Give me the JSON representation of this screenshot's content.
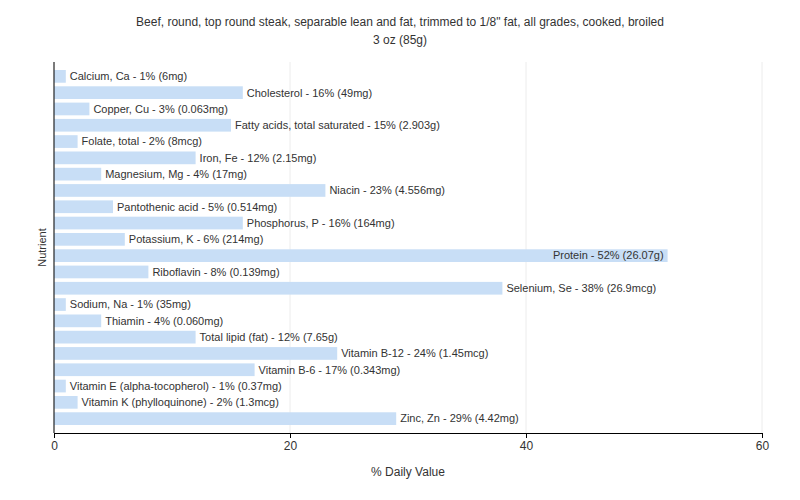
{
  "chart_data": {
    "type": "bar",
    "orientation": "horizontal",
    "title": "Beef, round, top round steak, separable lean and fat, trimmed to 1/8\" fat, all grades, cooked, broiled",
    "subtitle": "3 oz (85g)",
    "x_label": "% Daily Value",
    "y_label": "Nutrient",
    "categories": [
      "Calcium, Ca - 1% (6mg)",
      "Cholesterol - 16% (49mg)",
      "Copper, Cu - 3% (0.063mg)",
      "Fatty acids, total saturated - 15% (2.903g)",
      "Folate, total - 2% (8mcg)",
      "Iron, Fe - 12% (2.15mg)",
      "Magnesium, Mg - 4% (17mg)",
      "Niacin - 23% (4.556mg)",
      "Pantothenic acid - 5% (0.514mg)",
      "Phosphorus, P - 16% (164mg)",
      "Potassium, K - 6% (214mg)",
      "Protein - 52% (26.07g)",
      "Riboflavin - 8% (0.139mg)",
      "Selenium, Se - 38% (26.9mcg)",
      "Sodium, Na - 1% (35mg)",
      "Thiamin - 4% (0.060mg)",
      "Total lipid (fat) - 12% (7.65g)",
      "Vitamin B-12 - 24% (1.45mcg)",
      "Vitamin B-6 - 17% (0.343mg)",
      "Vitamin E (alpha-tocopherol) - 1% (0.37mg)",
      "Vitamin K (phylloquinone) - 2% (1.3mcg)",
      "Zinc, Zn - 29% (4.42mg)"
    ],
    "values": [
      1,
      16,
      3,
      15,
      2,
      12,
      4,
      23,
      5,
      16,
      6,
      52,
      8,
      38,
      1,
      4,
      12,
      24,
      17,
      1,
      2,
      29
    ],
    "color": "#c8def6",
    "xlim": [
      0,
      60
    ],
    "xticks": [
      0,
      20,
      40,
      60
    ],
    "grid": true,
    "tick_labels": "x"
  }
}
